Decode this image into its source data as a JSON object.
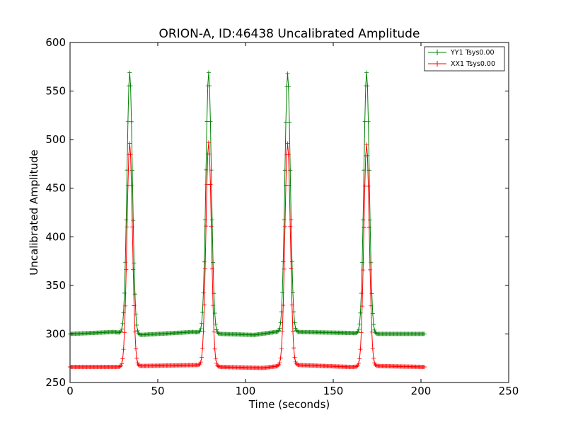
{
  "chart_data": {
    "type": "line",
    "title": "ORION-A, ID:46438 Uncalibrated Amplitude",
    "xlabel": "Time (seconds)",
    "ylabel": "Uncalibrated Amplitude",
    "xlim": [
      0,
      250
    ],
    "ylim": [
      250,
      600
    ],
    "xticks": [
      "0",
      "50",
      "100",
      "150",
      "200",
      "250"
    ],
    "yticks": [
      "250",
      "300",
      "350",
      "400",
      "450",
      "500",
      "550",
      "600"
    ],
    "grid": false,
    "legend_position": "top-right",
    "t_start": 0,
    "t_end": 202,
    "t_step": 0.5,
    "peak_centers": [
      34,
      79,
      124,
      169
    ],
    "series": [
      {
        "name": "YY1 Tsys0.00",
        "color": "#008000",
        "baseline_segments": [
          [
            0,
            300
          ],
          [
            25,
            302
          ],
          [
            40,
            299
          ],
          [
            70,
            302
          ],
          [
            86,
            300
          ],
          [
            105,
            299
          ],
          [
            117,
            302
          ],
          [
            130,
            302
          ],
          [
            160,
            301
          ],
          [
            175,
            300
          ],
          [
            202,
            300
          ]
        ],
        "peaks": [
          569,
          569,
          568,
          569
        ]
      },
      {
        "name": "XX1 Tsys0.00",
        "color": "#ff0000",
        "baseline_segments": [
          [
            0,
            266
          ],
          [
            28,
            266
          ],
          [
            40,
            267
          ],
          [
            72,
            268
          ],
          [
            86,
            266
          ],
          [
            110,
            265
          ],
          [
            119,
            267
          ],
          [
            130,
            268
          ],
          [
            160,
            266
          ],
          [
            175,
            267
          ],
          [
            202,
            266
          ]
        ],
        "peaks": [
          496,
          497,
          496,
          495
        ]
      }
    ]
  }
}
